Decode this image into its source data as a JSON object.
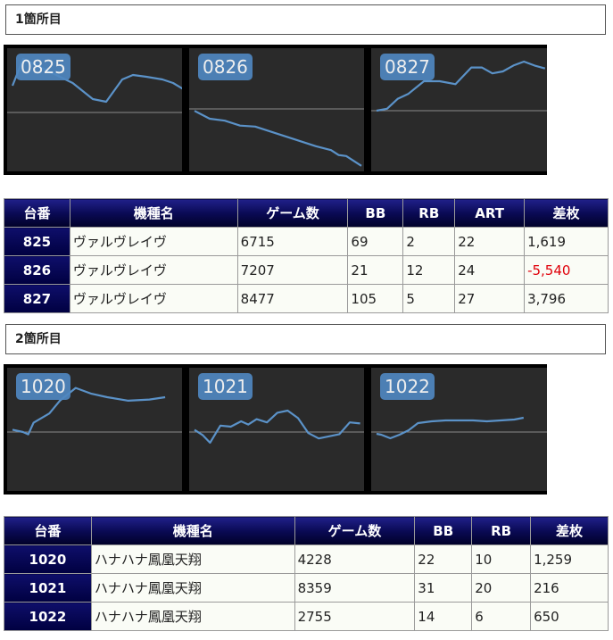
{
  "section1": {
    "title": "1箇所目",
    "charts": [
      {
        "label": "0825",
        "series": [
          [
            0,
            30
          ],
          [
            0.08,
            60
          ],
          [
            0.45,
            33
          ],
          [
            0.6,
            15
          ],
          [
            0.7,
            12
          ],
          [
            0.82,
            37
          ],
          [
            0.9,
            42
          ],
          [
            1,
            40
          ],
          [
            1.12,
            37
          ],
          [
            1.2,
            33
          ],
          [
            1.3,
            24
          ]
        ]
      },
      {
        "label": "0826",
        "series": [
          [
            0,
            -2
          ],
          [
            0.2,
            -10
          ],
          [
            0.4,
            -12
          ],
          [
            0.6,
            -17
          ],
          [
            0.8,
            -18
          ],
          [
            1.0,
            -23
          ],
          [
            1.2,
            -28
          ],
          [
            1.4,
            -33
          ],
          [
            1.6,
            -38
          ],
          [
            1.8,
            -42
          ],
          [
            1.9,
            -47
          ],
          [
            2.0,
            -48
          ],
          [
            2.1,
            -53
          ],
          [
            2.2,
            -58
          ]
        ]
      },
      {
        "label": "0827",
        "series": [
          [
            0,
            0
          ],
          [
            0.1,
            2
          ],
          [
            0.2,
            12
          ],
          [
            0.3,
            17
          ],
          [
            0.45,
            30
          ],
          [
            0.6,
            30
          ],
          [
            0.75,
            27
          ],
          [
            0.9,
            44
          ],
          [
            1.0,
            44
          ],
          [
            1.1,
            38
          ],
          [
            1.2,
            40
          ],
          [
            1.3,
            46
          ],
          [
            1.4,
            50
          ],
          [
            1.5,
            46
          ],
          [
            1.6,
            43
          ]
        ]
      }
    ],
    "table": {
      "headers": [
        "台番",
        "機種名",
        "ゲーム数",
        "BB",
        "RB",
        "ART",
        "差枚"
      ],
      "rows": [
        {
          "no": "825",
          "name": "ヴァルヴレイヴ",
          "games": "6715",
          "bb": "69",
          "rb": "2",
          "art": "22",
          "diff": "1,619"
        },
        {
          "no": "826",
          "name": "ヴァルヴレイヴ",
          "games": "7207",
          "bb": "21",
          "rb": "12",
          "art": "24",
          "diff": "-5,540"
        },
        {
          "no": "827",
          "name": "ヴァルヴレイヴ",
          "games": "8477",
          "bb": "105",
          "rb": "5",
          "art": "27",
          "diff": "3,796"
        }
      ]
    }
  },
  "section2": {
    "title": "2箇所目",
    "charts": [
      {
        "label": "1020",
        "series": [
          [
            0,
            2
          ],
          [
            0.1,
            0
          ],
          [
            0.15,
            -2
          ],
          [
            0.2,
            8
          ],
          [
            0.35,
            16
          ],
          [
            0.45,
            27
          ],
          [
            0.6,
            38
          ],
          [
            0.75,
            33
          ],
          [
            0.9,
            30
          ],
          [
            1.1,
            27
          ],
          [
            1.3,
            28
          ],
          [
            1.45,
            30
          ]
        ]
      },
      {
        "label": "1021",
        "series": [
          [
            0,
            2
          ],
          [
            0.08,
            -3
          ],
          [
            0.15,
            -10
          ],
          [
            0.25,
            6
          ],
          [
            0.35,
            5
          ],
          [
            0.45,
            10
          ],
          [
            0.52,
            7
          ],
          [
            0.6,
            12
          ],
          [
            0.7,
            9
          ],
          [
            0.8,
            18
          ],
          [
            0.9,
            20
          ],
          [
            1.0,
            13
          ],
          [
            1.1,
            -1
          ],
          [
            1.2,
            -6
          ],
          [
            1.3,
            -4
          ],
          [
            1.4,
            -2
          ],
          [
            1.5,
            9
          ],
          [
            1.6,
            8
          ]
        ]
      },
      {
        "label": "1022",
        "series": [
          [
            0,
            -2
          ],
          [
            0.05,
            -3
          ],
          [
            0.15,
            -7
          ],
          [
            0.25,
            -3
          ],
          [
            0.35,
            2
          ],
          [
            0.45,
            10
          ],
          [
            0.6,
            12
          ],
          [
            0.75,
            13
          ],
          [
            0.9,
            13
          ],
          [
            1.05,
            13
          ],
          [
            1.2,
            12
          ],
          [
            1.35,
            13
          ],
          [
            1.5,
            14
          ],
          [
            1.6,
            16
          ]
        ]
      }
    ],
    "table": {
      "headers": [
        "台番",
        "機種名",
        "ゲーム数",
        "BB",
        "RB",
        "差枚"
      ],
      "rows": [
        {
          "no": "1020",
          "name": "ハナハナ鳳凰天翔",
          "games": "4228",
          "bb": "22",
          "rb": "10",
          "diff": "1,259"
        },
        {
          "no": "1021",
          "name": "ハナハナ鳳凰天翔",
          "games": "8359",
          "bb": "31",
          "rb": "20",
          "diff": "216"
        },
        {
          "no": "1022",
          "name": "ハナハナ鳳凰天翔",
          "games": "2755",
          "bb": "14",
          "rb": "6",
          "diff": "650"
        }
      ]
    }
  },
  "colors": {
    "chart_line": "#5b92c8",
    "chart_bg": "#2a2a2a",
    "negative": "#e0000a"
  }
}
